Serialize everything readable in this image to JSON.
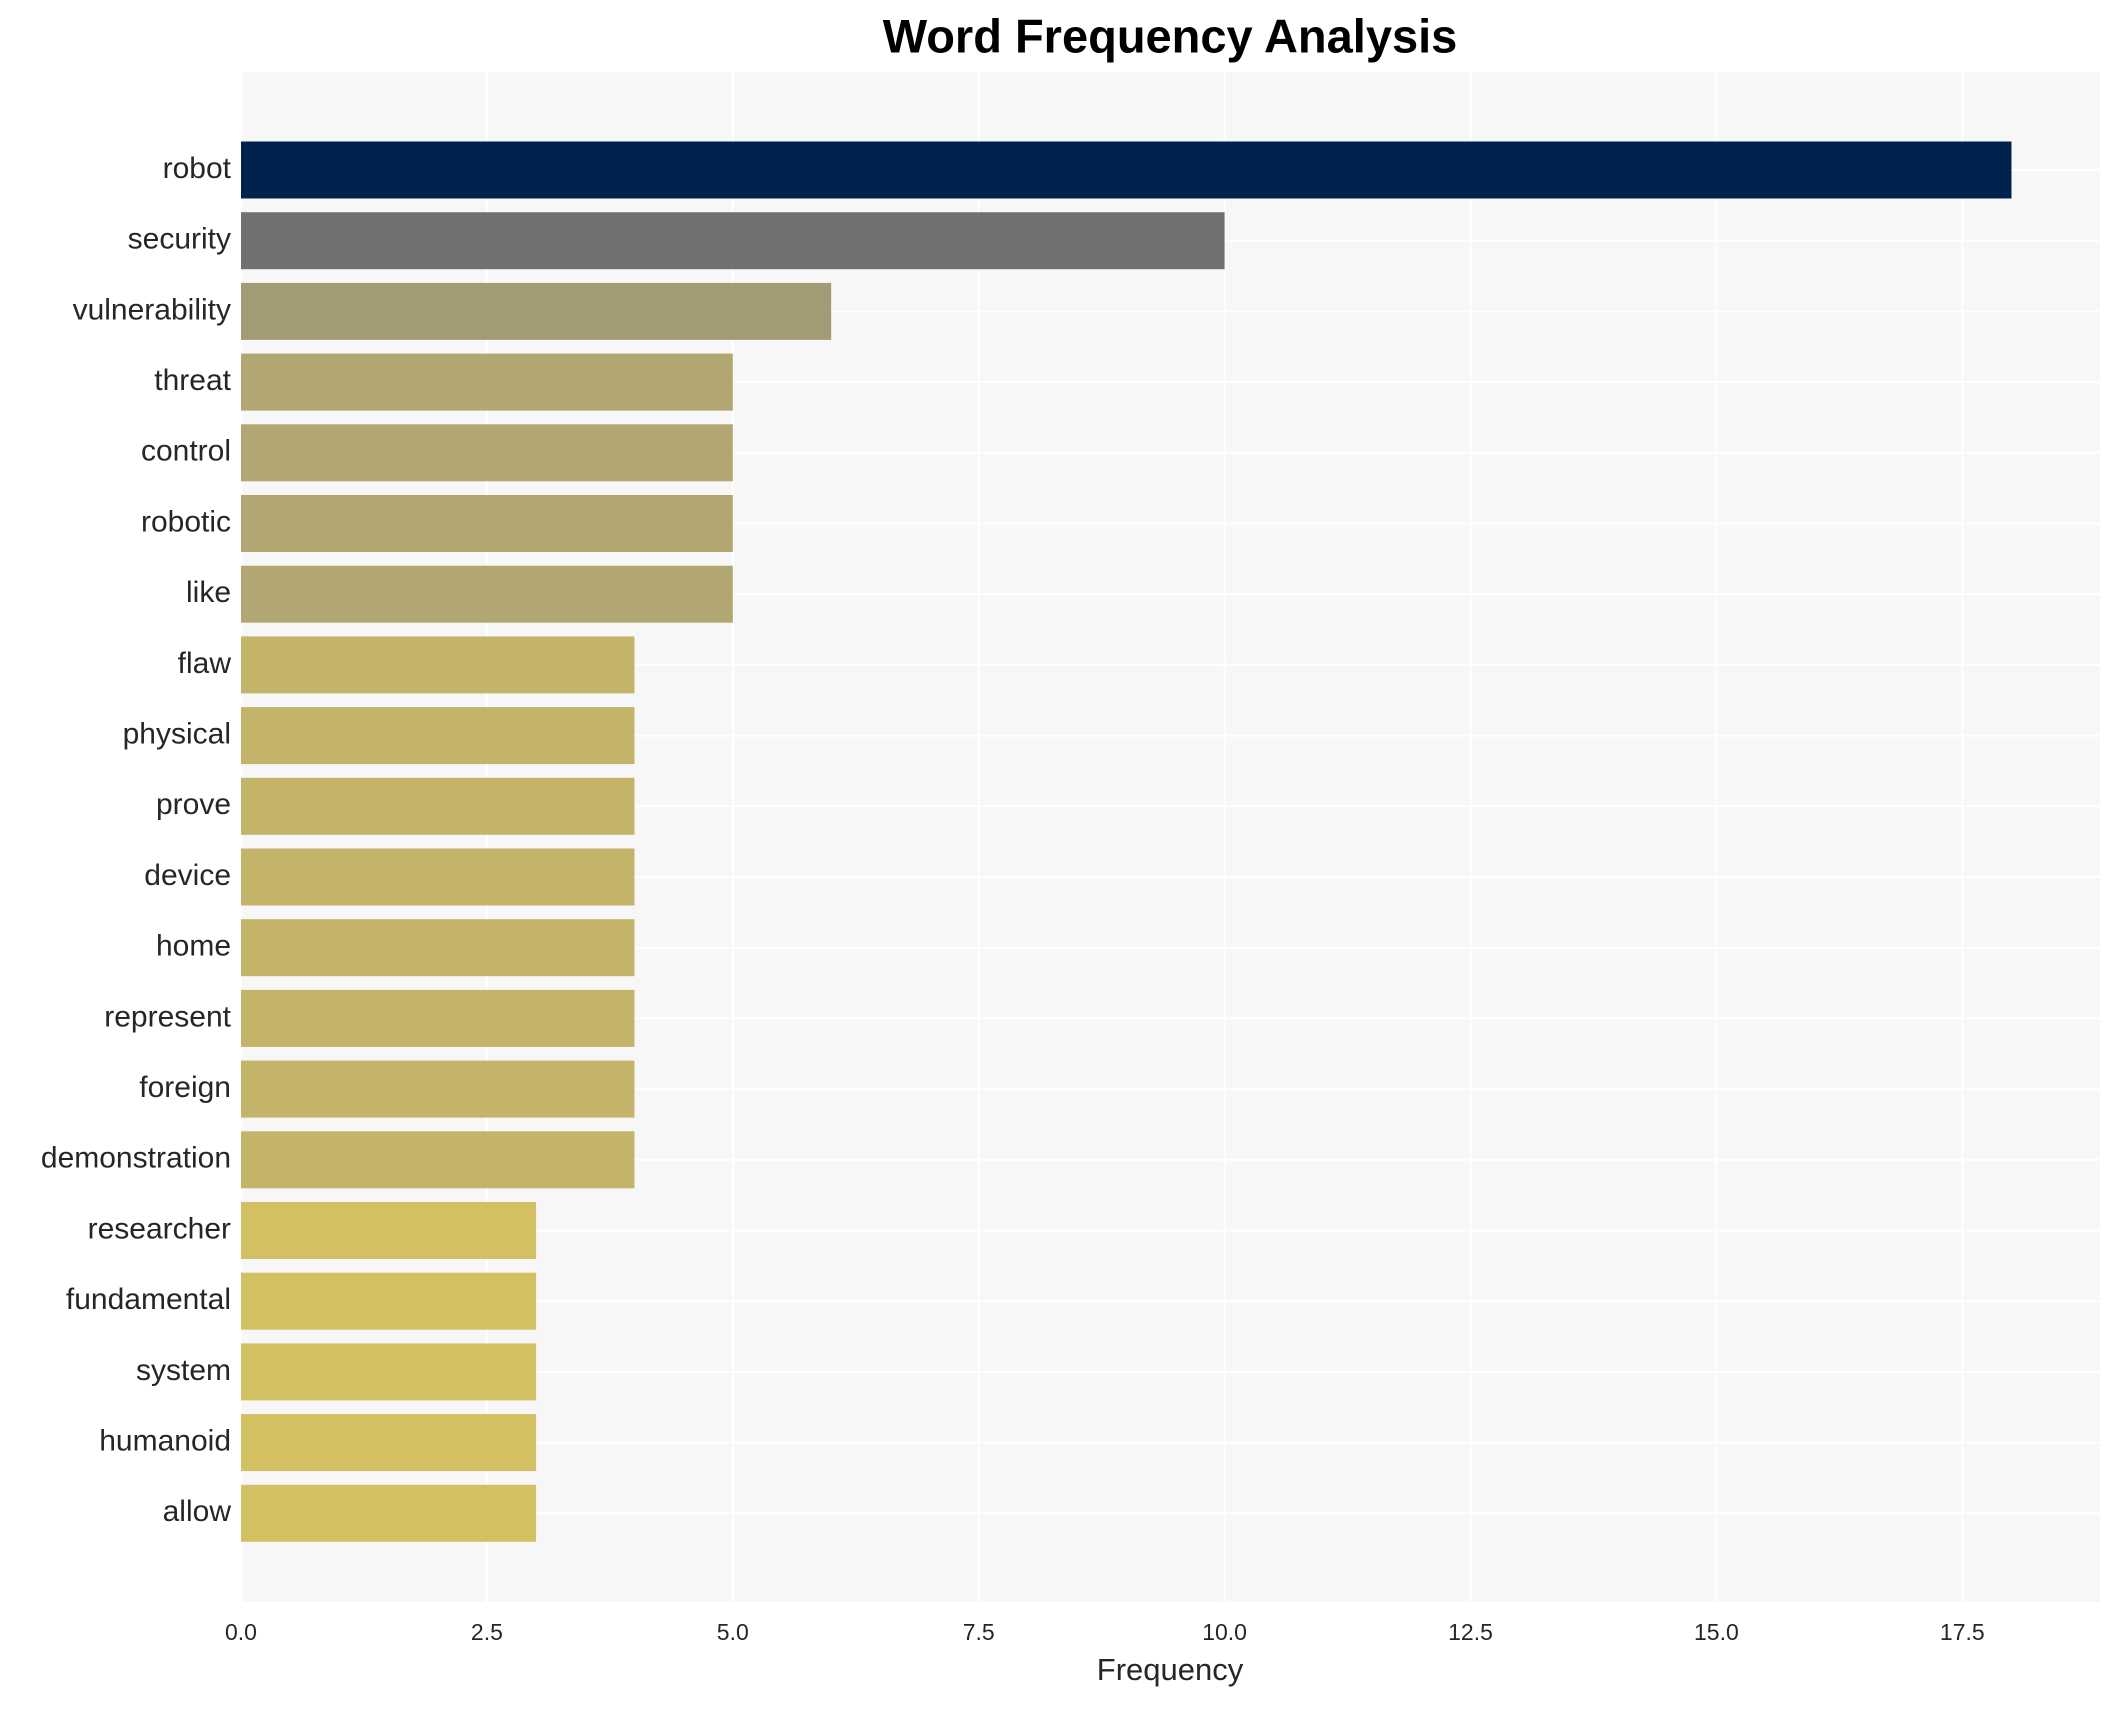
{
  "chart_data": {
    "type": "barh",
    "title": "Word Frequency Analysis",
    "x_label": "Frequency",
    "categories": [
      "robot",
      "security",
      "vulnerability",
      "threat",
      "control",
      "robotic",
      "like",
      "flaw",
      "physical",
      "prove",
      "device",
      "home",
      "represent",
      "foreign",
      "demonstration",
      "researcher",
      "fundamental",
      "system",
      "humanoid",
      "allow"
    ],
    "values": [
      18,
      10,
      6,
      5,
      5,
      5,
      5,
      4,
      4,
      4,
      4,
      4,
      4,
      4,
      4,
      3,
      3,
      3,
      3,
      3
    ],
    "colors": [
      "#00234e",
      "#707173",
      "#a39b73",
      "#b2a772",
      "#b2a772",
      "#b2a772",
      "#b2a772",
      "#c4b46a",
      "#c4b46a",
      "#c4b46a",
      "#c4b46a",
      "#c4b46a",
      "#c4b46a",
      "#c4b46a",
      "#c4b46a",
      "#d2c063",
      "#d2c063",
      "#d2c063",
      "#d2c063",
      "#d2c063"
    ],
    "xlim": [
      0,
      18.9
    ],
    "xticks": [
      {
        "value": 0,
        "label": "0.0"
      },
      2.5,
      {
        "value": 5,
        "label": "5.0"
      },
      7.5,
      {
        "value": 10,
        "label": "10.0"
      },
      12.5,
      {
        "value": 15,
        "label": "15.0"
      },
      17.5
    ],
    "grid": true
  }
}
